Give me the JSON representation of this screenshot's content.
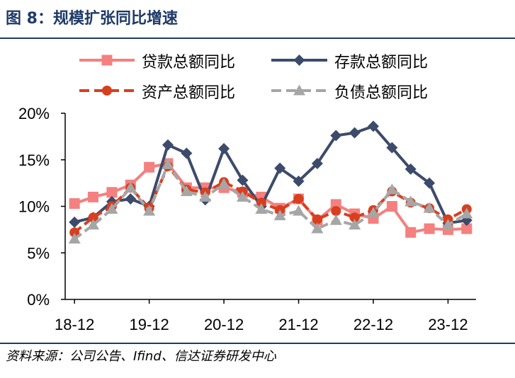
{
  "header": {
    "title": "图 8：规模扩张同比增速"
  },
  "footer": {
    "source": "资料来源：公司公告、Ifind、信达证券研发中心"
  },
  "chart_data": {
    "type": "line",
    "x": [
      "18-12",
      "19-03",
      "19-06",
      "19-09",
      "19-12",
      "20-03",
      "20-06",
      "20-09",
      "20-12",
      "21-03",
      "21-06",
      "21-09",
      "21-12",
      "22-03",
      "22-06",
      "22-09",
      "22-12",
      "23-03",
      "23-06",
      "23-09",
      "23-12",
      "24-03"
    ],
    "xticks": [
      "18-12",
      "19-12",
      "20-12",
      "21-12",
      "22-12",
      "23-12"
    ],
    "ylim": [
      0,
      20
    ],
    "yticks": [
      "0%",
      "5%",
      "10%",
      "15%",
      "20%"
    ],
    "legend_position": "top",
    "series": [
      {
        "name": "贷款总额同比",
        "color": "#f4807f",
        "marker": "square",
        "dash": "solid",
        "values": [
          10.3,
          11.0,
          11.5,
          12.3,
          14.2,
          14.6,
          12.0,
          12.0,
          12.0,
          11.5,
          11.0,
          9.8,
          10.8,
          8.5,
          10.2,
          9.2,
          8.7,
          10.0,
          7.2,
          7.6,
          7.5,
          7.6
        ]
      },
      {
        "name": "存款总额同比",
        "color": "#3d4b6b",
        "marker": "diamond",
        "dash": "solid",
        "values": [
          8.3,
          8.8,
          10.5,
          10.8,
          10.0,
          16.6,
          15.7,
          10.7,
          16.2,
          12.8,
          10.0,
          14.1,
          12.7,
          14.6,
          17.6,
          17.9,
          18.6,
          16.3,
          14.0,
          12.5,
          8.2,
          8.5
        ]
      },
      {
        "name": "资产总额同比",
        "color": "#d83f1f",
        "marker": "circle",
        "dash": "dashed",
        "values": [
          7.2,
          8.8,
          10.0,
          12.0,
          9.8,
          14.3,
          11.8,
          11.5,
          12.6,
          11.6,
          10.4,
          9.6,
          10.8,
          8.6,
          9.5,
          8.8,
          9.6,
          11.6,
          10.4,
          9.8,
          8.6,
          9.7
        ]
      },
      {
        "name": "负债总额同比",
        "color": "#a6a6a6",
        "marker": "triangle",
        "dash": "dashed",
        "values": [
          6.5,
          8.0,
          9.7,
          12.0,
          9.5,
          14.5,
          11.6,
          11.0,
          12.4,
          11.0,
          9.7,
          9.0,
          9.5,
          7.6,
          8.5,
          8.0,
          9.3,
          11.8,
          10.5,
          9.8,
          8.0,
          9.2
        ]
      }
    ]
  }
}
